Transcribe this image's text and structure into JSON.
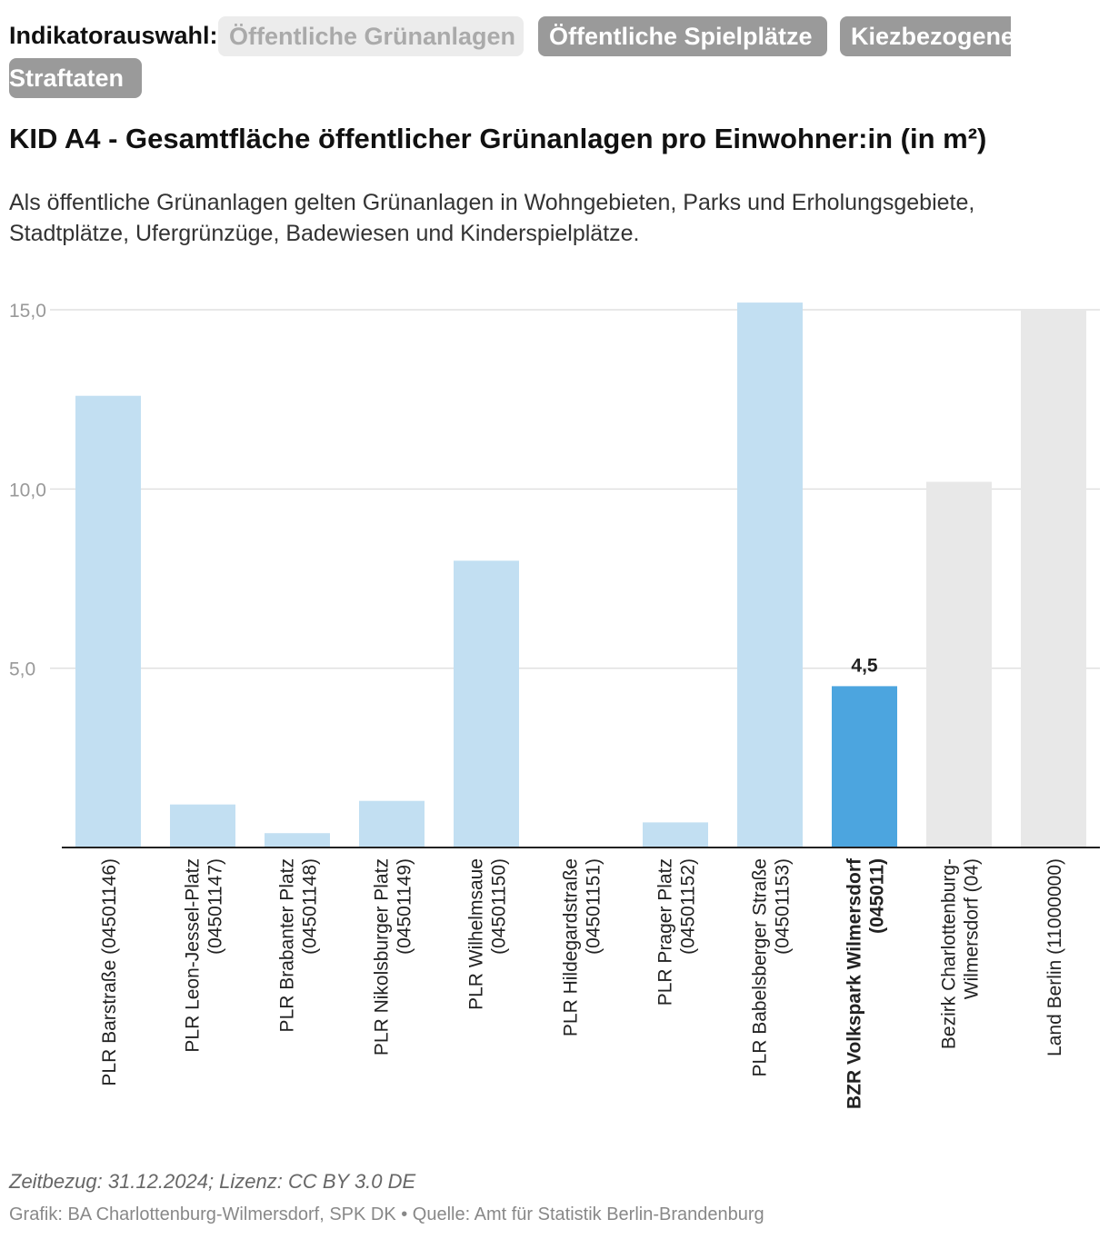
{
  "selector": {
    "label": "Indikatorauswahl:",
    "options": [
      {
        "label": "Öffentliche Grünanlagen",
        "active": true
      },
      {
        "label": "Öffentliche Spielplätze",
        "active": false
      },
      {
        "label": "Kiezbezogene",
        "active": false
      },
      {
        "label": "Straftaten",
        "active": false
      }
    ]
  },
  "chart_data": {
    "type": "bar",
    "title": "KID A4 - Gesamtfläche öffentlicher Grünanlagen pro Einwohner:in (in m²)",
    "subtitle": "Als öffentliche Grünanlagen gelten Grünanlagen in Wohngebieten, Parks und Erholungsgebiete, Stadtplätze, Ufergrünzüge, Badewiesen und Kinderspielplätze.",
    "ylim": [
      0,
      15.2
    ],
    "yticks": [
      5,
      10,
      15
    ],
    "ytick_labels": [
      "5,0",
      "10,0",
      "15,0"
    ],
    "categories": [
      {
        "lines": [
          "PLR Barstraße (04501146)"
        ],
        "value": 12.6,
        "kind": "plr",
        "bold": false
      },
      {
        "lines": [
          "PLR Leon-Jessel-Platz",
          "(04501147)"
        ],
        "value": 1.2,
        "kind": "plr",
        "bold": false
      },
      {
        "lines": [
          "PLR Brabanter Platz",
          "(04501148)"
        ],
        "value": 0.4,
        "kind": "plr",
        "bold": false
      },
      {
        "lines": [
          "PLR Nikolsburger Platz",
          "(04501149)"
        ],
        "value": 1.3,
        "kind": "plr",
        "bold": false
      },
      {
        "lines": [
          "PLR Wilhelmsaue",
          "(04501150)"
        ],
        "value": 8.0,
        "kind": "plr",
        "bold": false
      },
      {
        "lines": [
          "PLR Hildegardstraße",
          "(04501151)"
        ],
        "value": 0.0,
        "kind": "plr",
        "bold": false
      },
      {
        "lines": [
          "PLR Prager Platz",
          "(04501152)"
        ],
        "value": 0.7,
        "kind": "plr",
        "bold": false
      },
      {
        "lines": [
          "PLR Babelsberger Straße",
          "(04501153)"
        ],
        "value": 15.2,
        "kind": "plr",
        "bold": false
      },
      {
        "lines": [
          "BZR Volkspark Wilmersdorf",
          "(045011)"
        ],
        "value": 4.5,
        "kind": "highlight",
        "bold": true,
        "value_label": "4,5"
      },
      {
        "lines": [
          "Bezirk Charlottenburg-",
          "Wilmersdorf (04)"
        ],
        "value": 10.2,
        "kind": "reference",
        "bold": false
      },
      {
        "lines": [
          "Land Berlin (11000000)"
        ],
        "value": 15.0,
        "kind": "reference",
        "bold": false
      }
    ],
    "colors": {
      "plr": "#c2dff2",
      "highlight": "#4ca5df",
      "reference": "#e8e8e8",
      "grid": "#e0e0e0",
      "axis": "#222222",
      "tick": "#999999"
    }
  },
  "footer": {
    "line1": "Zeitbezug: 31.12.2024; Lizenz: CC BY 3.0 DE",
    "line2": "Grafik: BA Charlottenburg-Wilmersdorf, SPK DK • Quelle: Amt für Statistik Berlin-Brandenburg"
  }
}
